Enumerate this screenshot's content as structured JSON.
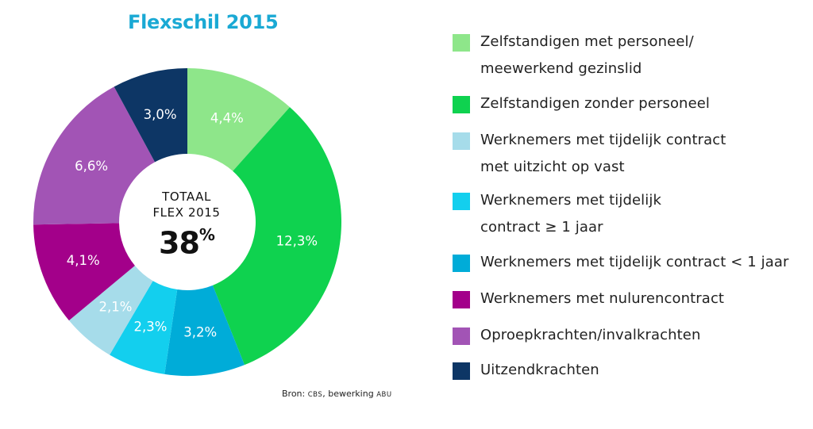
{
  "chart_data": {
    "type": "pie",
    "title": "Flexschil 2015",
    "center": {
      "line1": "TOTAAL",
      "line2": "FLEX 2015",
      "value": "38",
      "unit": "%"
    },
    "slices": [
      {
        "label": "Zelfstandigen met personeel/ meewerkend gezinslid",
        "value": 4.4,
        "display": "4,4%",
        "color": "#8ee68a"
      },
      {
        "label": "Zelfstandigen zonder personeel",
        "value": 12.3,
        "display": "12,3%",
        "color": "#0fd24f"
      },
      {
        "label": "Werknemers met tijdelijk contract < 1 jaar",
        "value": 3.2,
        "display": "3,2%",
        "color": "#00acd8"
      },
      {
        "label": "Werknemers met tijdelijk contract ≥ 1 jaar",
        "value": 2.3,
        "display": "2,3%",
        "color": "#13cfee"
      },
      {
        "label": "Werknemers met tijdelijk contract met uitzicht op vast",
        "value": 2.1,
        "display": "2,1%",
        "color": "#a6dcea"
      },
      {
        "label": "Werknemers met nulurencontract",
        "value": 4.1,
        "display": "4,1%",
        "color": "#a3008a"
      },
      {
        "label": "Oproepkrachten/invalkrachten",
        "value": 6.6,
        "display": "6,6%",
        "color": "#a254b5"
      },
      {
        "label": "Uitzendkrachten",
        "value": 3.0,
        "display": "3,0%",
        "color": "#0d3665"
      }
    ],
    "legend_position": "right",
    "source": {
      "prefix": "Bron:",
      "org": "CBS",
      "mid": ", bewerking",
      "org2": "ABU"
    }
  },
  "legend": [
    {
      "line1": "Zelfstandigen met personeel/",
      "line2": "meewerkend gezinslid",
      "color": "#8ee68a"
    },
    {
      "line1": "Zelfstandigen zonder personeel",
      "line2": "",
      "color": "#0fd24f"
    },
    {
      "line1": "Werknemers met tijdelijk contract",
      "line2": "met uitzicht op vast",
      "color": "#a6dcea"
    },
    {
      "line1": "Werknemers met tijdelijk",
      "line2": "contract ≥ 1 jaar",
      "color": "#13cfee"
    },
    {
      "line1": "Werknemers met tijdelijk contract < 1 jaar",
      "line2": "",
      "color": "#00acd8"
    },
    {
      "line1": "Werknemers met nulurencontract",
      "line2": "",
      "color": "#a3008a"
    },
    {
      "line1": "Oproepkrachten/invalkrachten",
      "line2": "",
      "color": "#a254b5"
    },
    {
      "line1": "Uitzendkrachten",
      "line2": "",
      "color": "#0d3665"
    }
  ]
}
